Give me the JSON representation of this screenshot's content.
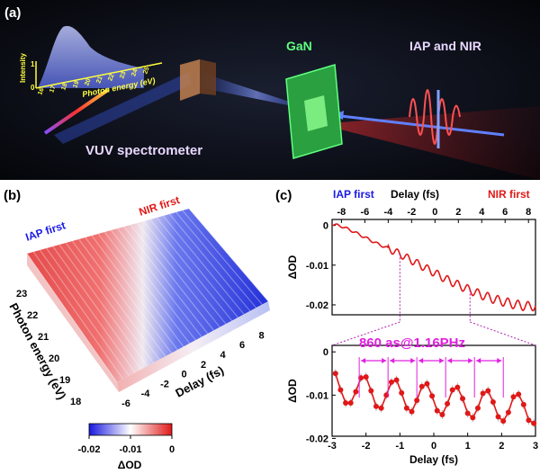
{
  "panel_a": {
    "label": "(a)",
    "gan_label": "GaN",
    "beam_label": "IAP and NIR",
    "spectrometer_label": "VUV spectrometer",
    "inset_ylabel": "Intensity",
    "inset_xlabel": "Photon energy (eV)",
    "inset_yticks": [
      "0",
      "1"
    ],
    "inset_xticks": [
      "16",
      "17",
      "18",
      "19",
      "20",
      "21",
      "22",
      "23",
      "24",
      "25"
    ]
  },
  "panel_b": {
    "label": "(b)",
    "iap_first": "IAP first",
    "nir_first": "NIR first",
    "yaxis_label": "Photon energy (eV)",
    "yticks": [
      "23",
      "22",
      "21",
      "20",
      "19",
      "18"
    ],
    "xaxis_label": "Delay (fs)",
    "xticks": [
      "-6",
      "-4",
      "-2",
      "0",
      "2",
      "4",
      "6",
      "8"
    ],
    "colorbar": {
      "label": "ΔOD",
      "ticks": [
        "-0.02",
        "-0.01",
        "0"
      ],
      "min": -0.02,
      "max": 0
    }
  },
  "panel_c": {
    "label": "(c)",
    "top_axis_label": "Delay (fs)",
    "iap_first": "IAP first",
    "nir_first": "NIR first",
    "annotation": "860 as@1.16PHz"
  },
  "colors": {
    "iap": "#1a1ae6",
    "nir": "#e01818",
    "annotation": "#e020e0",
    "gan": "#40ff70"
  },
  "chart_data": [
    {
      "type": "line",
      "x": [
        -8.8,
        -8,
        -7,
        -6,
        -5,
        -4,
        -3,
        -2,
        -1,
        0,
        1,
        2,
        3,
        4,
        5,
        6,
        7,
        8,
        8.6
      ],
      "y": [
        0.0003,
        -0.0002,
        -0.0015,
        -0.003,
        -0.0045,
        -0.0058,
        -0.0072,
        -0.0088,
        -0.0104,
        -0.012,
        -0.0136,
        -0.015,
        -0.0163,
        -0.0175,
        -0.0185,
        -0.0193,
        -0.02,
        -0.0204,
        -0.0202
      ],
      "oscillation": {
        "period_fs": 0.86,
        "frequency_PHz": 1.16
      },
      "xlabel": "Delay (fs)",
      "ylabel": "ΔOD",
      "xlim": [
        -8.8,
        8.6
      ],
      "ylim": [
        -0.0225,
        0.0015
      ],
      "xticks": [
        -8,
        -6,
        -4,
        -2,
        0,
        2,
        4,
        6,
        8
      ],
      "yticks": [
        0,
        -0.01,
        -0.02
      ],
      "ytick_labels": [
        "0",
        "-0.01",
        "-0.02"
      ],
      "xaxis_position": "top"
    },
    {
      "type": "scatter",
      "x": [
        -2.9,
        -2.75,
        -2.6,
        -2.45,
        -2.3,
        -2.15,
        -2.0,
        -1.85,
        -1.7,
        -1.55,
        -1.4,
        -1.25,
        -1.1,
        -0.95,
        -0.8,
        -0.65,
        -0.5,
        -0.35,
        -0.2,
        -0.05,
        0.1,
        0.25,
        0.4,
        0.55,
        0.7,
        0.85,
        1.0,
        1.15,
        1.3,
        1.45,
        1.6,
        1.75,
        1.9,
        2.05,
        2.2,
        2.35,
        2.5,
        2.65,
        2.8,
        2.95
      ],
      "y": [
        -0.005,
        -0.0088,
        -0.0118,
        -0.0118,
        -0.0092,
        -0.006,
        -0.0058,
        -0.009,
        -0.0126,
        -0.013,
        -0.01,
        -0.007,
        -0.0065,
        -0.0095,
        -0.013,
        -0.0138,
        -0.0112,
        -0.008,
        -0.0074,
        -0.0102,
        -0.0136,
        -0.0145,
        -0.012,
        -0.0088,
        -0.0082,
        -0.0108,
        -0.0142,
        -0.0152,
        -0.013,
        -0.0096,
        -0.009,
        -0.0116,
        -0.015,
        -0.016,
        -0.014,
        -0.0104,
        -0.0098,
        -0.0122,
        -0.0158,
        -0.0165
      ],
      "peak_markers": [
        -2.2,
        -1.35,
        -0.5,
        0.35,
        1.2,
        2.05
      ],
      "xlabel": "Delay (fs)",
      "ylabel": "ΔOD",
      "xlim": [
        -3,
        3
      ],
      "ylim": [
        -0.0195,
        0.0015
      ],
      "xticks": [
        -3,
        -2,
        -1,
        0,
        1,
        2,
        3
      ],
      "yticks": [
        0,
        -0.01,
        -0.02
      ],
      "ytick_labels": [
        "0",
        "-0.01",
        "-0.02"
      ]
    }
  ]
}
